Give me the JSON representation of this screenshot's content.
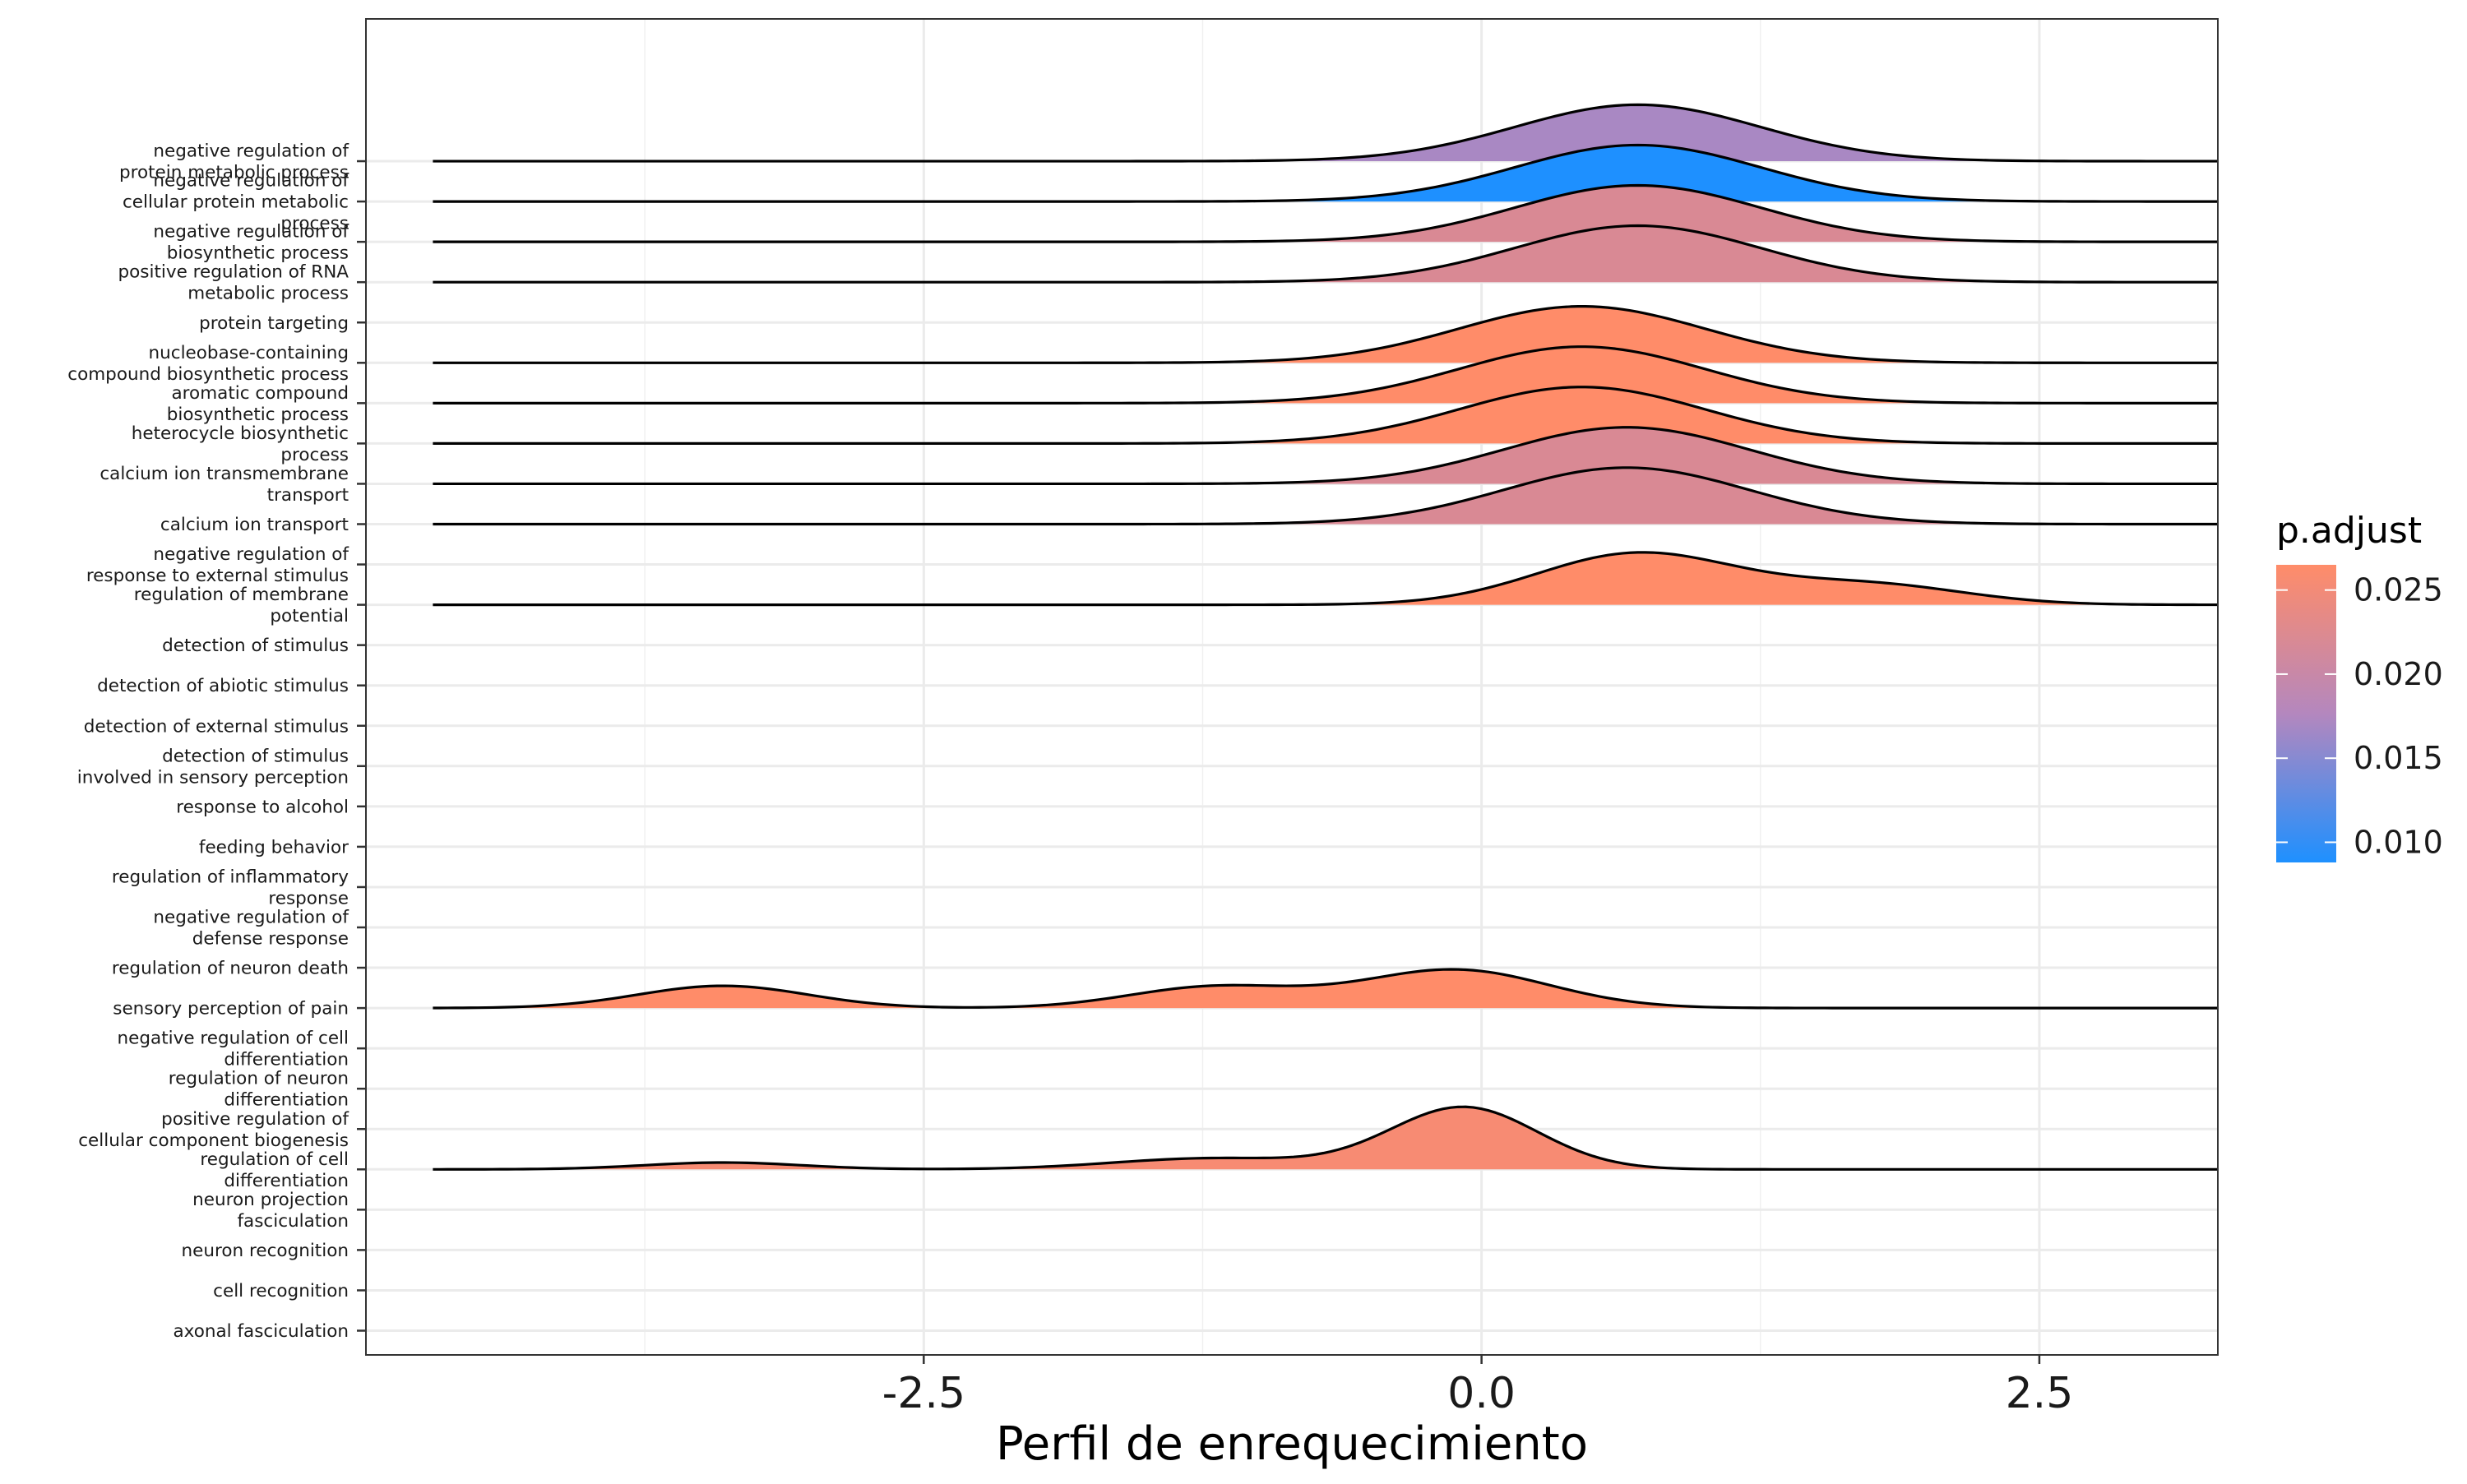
{
  "chart_data": {
    "type": "ridgeline",
    "xlabel": "Perfil de enrequecimiento",
    "x_ticks": [
      "-2.5",
      "0.0",
      "2.5"
    ],
    "x_tick_values": [
      -2.5,
      0.0,
      2.5
    ],
    "xlim": [
      -5,
      3.3
    ],
    "grid": true,
    "legend": {
      "title": "p.adjust",
      "position": "right",
      "ticks": [
        "0.025",
        "0.020",
        "0.015",
        "0.010"
      ],
      "tick_values": [
        0.025,
        0.02,
        0.015,
        0.01
      ],
      "range": [
        0.0088,
        0.0265
      ],
      "color_low": "#1E90FF",
      "color_mid": "#B487BE",
      "color_high": "#FF8C69"
    },
    "categories": [
      "axonal fasciculation",
      "cell recognition",
      "neuron recognition",
      "neuron projection\nfasciculation",
      "regulation of cell\ndifferentiation",
      "positive regulation of\ncellular component biogenesis",
      "regulation of neuron\ndifferentiation",
      "negative regulation of cell\ndifferentiation",
      "sensory perception of pain",
      "regulation of neuron death",
      "negative regulation of\ndefense response",
      "regulation of inflammatory\nresponse",
      "feeding behavior",
      "response to alcohol",
      "detection of stimulus\ninvolved in sensory perception",
      "detection of external stimulus",
      "detection of abiotic stimulus",
      "detection of stimulus",
      "regulation of membrane\npotential",
      "negative regulation of\nresponse to external stimulus",
      "calcium ion transport",
      "calcium ion transmembrane\ntransport",
      "heterocycle biosynthetic\nprocess",
      "aromatic compound\nbiosynthetic process",
      "nucleobase-containing\ncompound biosynthetic process",
      "protein targeting",
      "positive regulation of RNA\nmetabolic process",
      "negative regulation of\nbiosynthetic process",
      "negative regulation of\ncellular protein metabolic\nprocess",
      "negative regulation of\nprotein metabolic process"
    ],
    "density_x_range": [
      -4.7,
      3.35
    ],
    "series": [
      {
        "category": "regulation of cell\ndifferentiation",
        "p_adjust": 0.0255,
        "peak_height": 1.55,
        "components": [
          {
            "mean": -3.4,
            "sd": 0.35,
            "weight": 0.11
          },
          {
            "mean": -1.2,
            "sd": 0.45,
            "weight": 0.18
          },
          {
            "mean": -0.08,
            "sd": 0.33,
            "weight": 1.0
          }
        ]
      },
      {
        "category": "sensory perception of pain",
        "p_adjust": 0.0265,
        "peak_height": 0.96,
        "components": [
          {
            "mean": -3.4,
            "sd": 0.38,
            "weight": 0.58
          },
          {
            "mean": -1.2,
            "sd": 0.38,
            "weight": 0.55
          },
          {
            "mean": -0.12,
            "sd": 0.42,
            "weight": 1.0
          }
        ]
      },
      {
        "category": "regulation of membrane\npotential",
        "p_adjust": 0.0265,
        "peak_height": 1.3,
        "components": [
          {
            "mean": 0.7,
            "sd": 0.45,
            "weight": 1.0
          },
          {
            "mean": 1.75,
            "sd": 0.42,
            "weight": 0.38
          }
        ]
      },
      {
        "category": "calcium ion transport",
        "p_adjust": 0.022,
        "peak_height": 1.4,
        "components": [
          {
            "mean": 0.65,
            "sd": 0.55,
            "weight": 1.0
          }
        ]
      },
      {
        "category": "calcium ion transmembrane\ntransport",
        "p_adjust": 0.022,
        "peak_height": 1.4,
        "components": [
          {
            "mean": 0.65,
            "sd": 0.55,
            "weight": 1.0
          }
        ]
      },
      {
        "category": "heterocycle biosynthetic\nprocess",
        "p_adjust": 0.0265,
        "peak_height": 1.4,
        "components": [
          {
            "mean": 0.45,
            "sd": 0.55,
            "weight": 1.0
          }
        ]
      },
      {
        "category": "aromatic compound\nbiosynthetic process",
        "p_adjust": 0.0265,
        "peak_height": 1.4,
        "components": [
          {
            "mean": 0.45,
            "sd": 0.55,
            "weight": 1.0
          }
        ]
      },
      {
        "category": "nucleobase-containing\ncompound biosynthetic process",
        "p_adjust": 0.0265,
        "peak_height": 1.4,
        "components": [
          {
            "mean": 0.45,
            "sd": 0.55,
            "weight": 1.0
          }
        ]
      },
      {
        "category": "positive regulation of RNA\nmetabolic process",
        "p_adjust": 0.022,
        "peak_height": 1.4,
        "components": [
          {
            "mean": 0.7,
            "sd": 0.55,
            "weight": 1.0
          }
        ]
      },
      {
        "category": "negative regulation of\nbiosynthetic process",
        "p_adjust": 0.022,
        "peak_height": 1.4,
        "components": [
          {
            "mean": 0.7,
            "sd": 0.55,
            "weight": 1.0
          }
        ]
      },
      {
        "category": "negative regulation of\ncellular protein metabolic\nprocess",
        "p_adjust": 0.0088,
        "peak_height": 1.4,
        "components": [
          {
            "mean": 0.7,
            "sd": 0.55,
            "weight": 1.0
          }
        ]
      },
      {
        "category": "negative regulation of\nprotein metabolic process",
        "p_adjust": 0.017,
        "peak_height": 1.4,
        "components": [
          {
            "mean": 0.7,
            "sd": 0.55,
            "weight": 1.0
          }
        ]
      }
    ]
  }
}
